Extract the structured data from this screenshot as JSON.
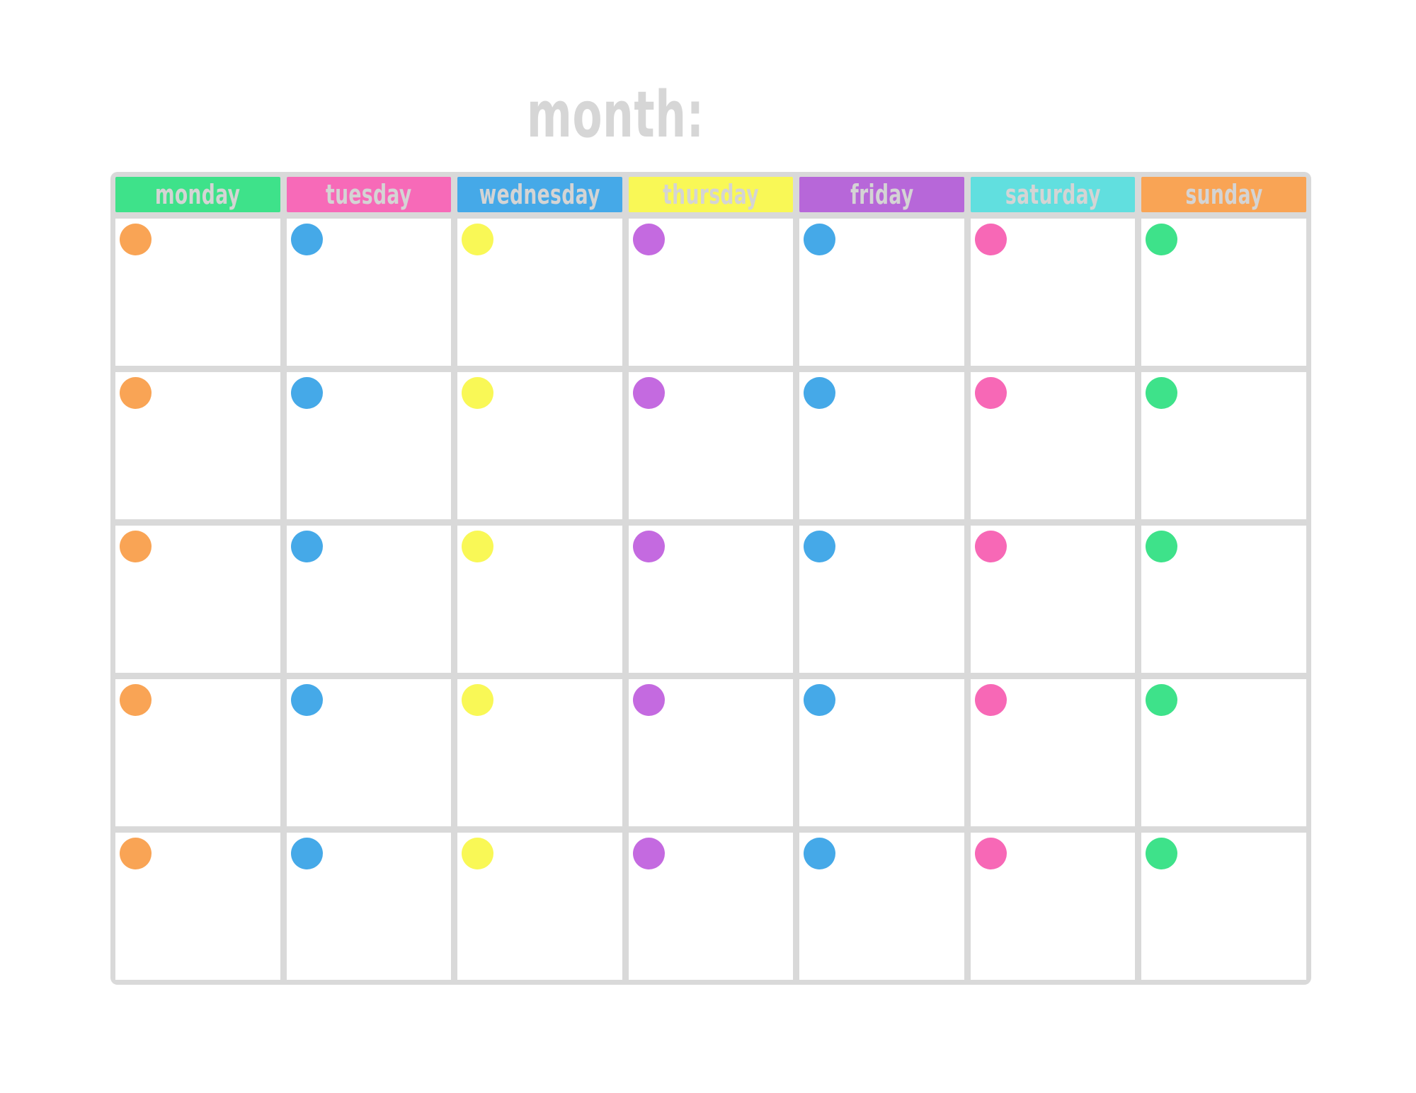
{
  "page": {
    "title": "month:"
  },
  "calendar": {
    "weeks": 5,
    "days": [
      {
        "label": "monday",
        "header_color": "#3ee28a",
        "dot_color": "#f9a455"
      },
      {
        "label": "tuesday",
        "header_color": "#f76ab8",
        "dot_color": "#45a9e8"
      },
      {
        "label": "wednesday",
        "header_color": "#45a9e8",
        "dot_color": "#f9f856"
      },
      {
        "label": "thursday",
        "header_color": "#f9f856",
        "dot_color": "#c46ae0"
      },
      {
        "label": "friday",
        "header_color": "#b767d9",
        "dot_color": "#45a9e8"
      },
      {
        "label": "saturday",
        "header_color": "#61dfdf",
        "dot_color": "#f768b6"
      },
      {
        "label": "sunday",
        "header_color": "#f9a455",
        "dot_color": "#3ee28a"
      }
    ]
  },
  "colors": {
    "page_bg": "#ffffff",
    "frame": "#d9d9d9",
    "cell_bg": "#ffffff",
    "title_text": "#d6d6d6",
    "label_text": "#d4d4d4"
  }
}
